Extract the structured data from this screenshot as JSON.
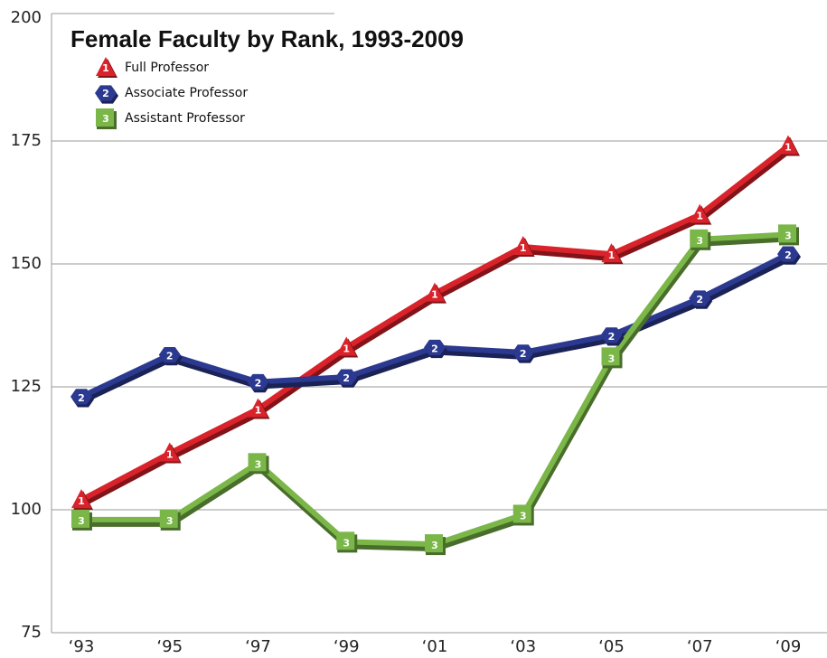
{
  "chart_data": {
    "type": "line",
    "title": "Female Faculty by Rank, 1993-2009",
    "categories": [
      "‘93",
      "‘95",
      "‘97",
      "‘99",
      "‘01",
      "‘03",
      "‘05",
      "‘07",
      "‘09"
    ],
    "series": [
      {
        "name": "Full Professor",
        "marker_label": "1",
        "marker": "triangle",
        "color": "#d9222a",
        "values": [
          102,
          111.5,
          120.5,
          133,
          144,
          153.5,
          152,
          160,
          174
        ]
      },
      {
        "name": "Associate Professor",
        "marker_label": "2",
        "marker": "hexagon",
        "color": "#2b3990",
        "values": [
          123,
          131.5,
          126,
          127,
          133,
          132,
          135.5,
          143,
          152
        ]
      },
      {
        "name": "Assistant Professor",
        "marker_label": "3",
        "marker": "square",
        "color": "#7ab648",
        "values": [
          98,
          98,
          109.5,
          93.5,
          93,
          99,
          131,
          155,
          156
        ]
      }
    ],
    "ylim": [
      75,
      200
    ],
    "yticks": [
      75,
      100,
      125,
      150,
      175,
      200
    ],
    "grid": true
  }
}
